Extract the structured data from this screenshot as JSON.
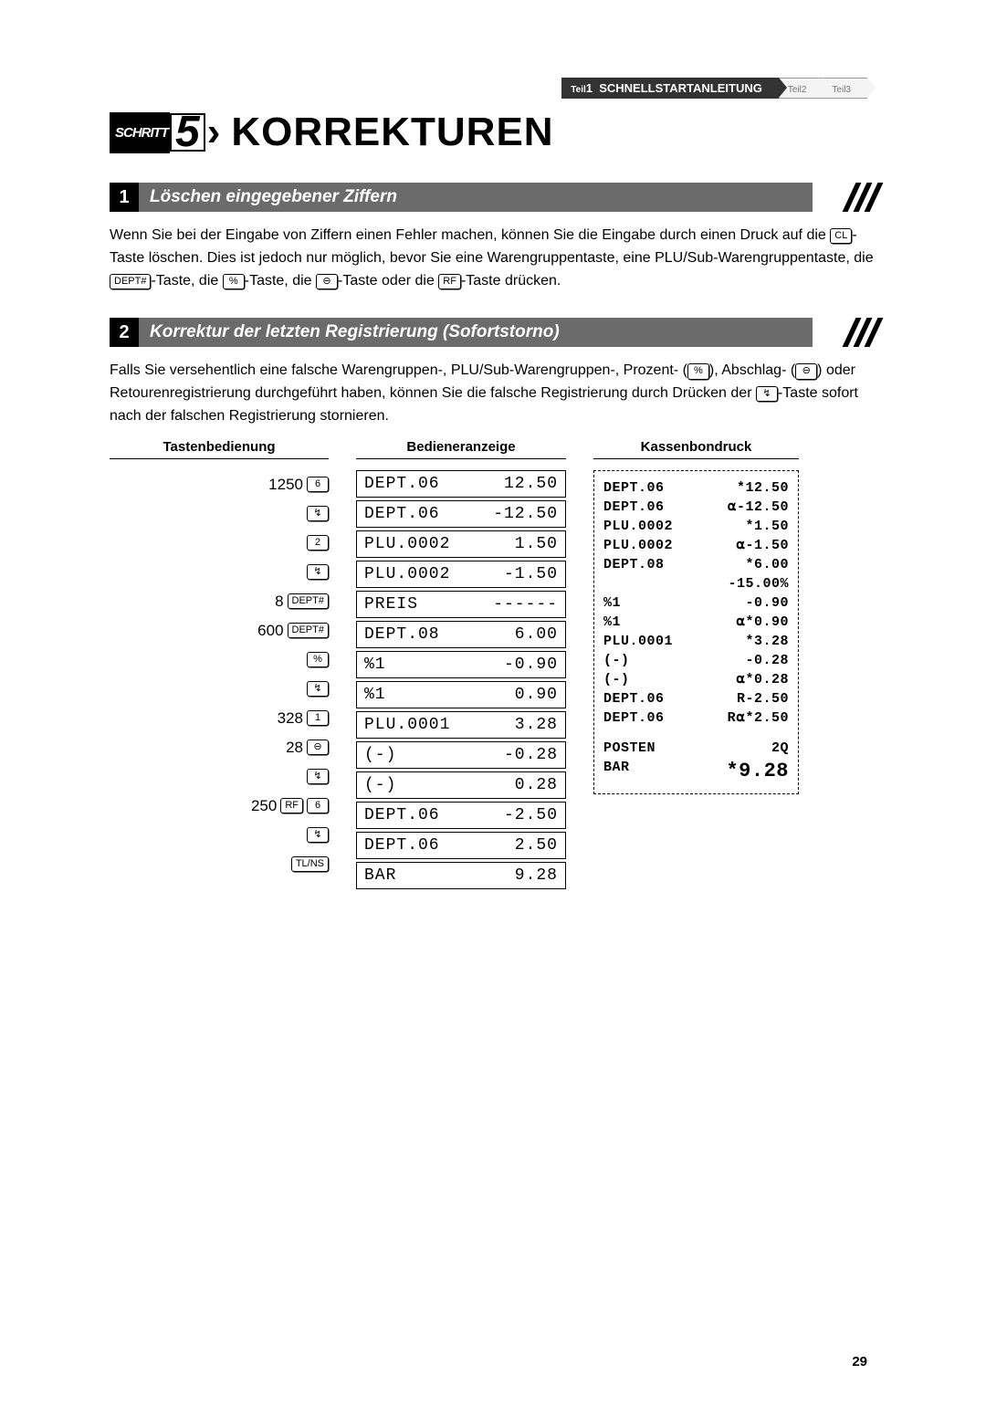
{
  "breadcrumb": {
    "part1_prefix": "Teil",
    "part1_num": "1",
    "part1_label": "SCHNELLSTARTANLEITUNG",
    "part2": "Teil2",
    "part3": "Teil3"
  },
  "step": {
    "badge": "SCHRITT",
    "number": "5",
    "title": "KORREKTUREN"
  },
  "section1": {
    "num": "1",
    "title": "Löschen eingegebener Ziffern",
    "paragraph_a": "Wenn Sie bei der Eingabe von Ziffern einen Fehler machen, können Sie die Eingabe durch einen Druck auf die ",
    "key_cl": "CL",
    "paragraph_b": "-Taste löschen. Dies ist jedoch nur möglich, bevor Sie eine Warengruppentaste, eine PLU/Sub-Warengruppentaste, die ",
    "key_dept": "DEPT#",
    "paragraph_c": "-Taste, die ",
    "key_pct": "%",
    "paragraph_d": "-Taste, die ",
    "key_minus": "⊖",
    "paragraph_e": "-Taste oder die ",
    "key_rf": "RF",
    "paragraph_f": "-Taste drücken."
  },
  "section2": {
    "num": "2",
    "title": "Korrektur der letzten Registrierung (Sofortstorno)",
    "paragraph_a": "Falls Sie versehentlich eine falsche Warengruppen-, PLU/Sub-Warengruppen-, Prozent- (",
    "key_pct": "%",
    "paragraph_b": "), Abschlag- (",
    "key_minus": "⊖",
    "paragraph_c": ") oder Retourenregistrierung durchgeführt haben, können Sie die falsche Registrierung durch Drücken der ",
    "key_void": "↯",
    "paragraph_d": "-Taste sofort nach der falschen Registrierung stornieren."
  },
  "columns": {
    "head_keys": "Tastenbedienung",
    "head_disp": "Bedieneranzeige",
    "head_receipt": "Kassenbondruck"
  },
  "key_rows": [
    {
      "pre": "1250",
      "keys": [
        "6"
      ]
    },
    {
      "pre": "",
      "keys": [
        "↯"
      ]
    },
    {
      "pre": "",
      "keys": [
        "2"
      ]
    },
    {
      "pre": "",
      "keys": [
        "↯"
      ]
    },
    {
      "pre": "8",
      "keys": [
        "DEPT#"
      ]
    },
    {
      "pre": "600",
      "keys": [
        "DEPT#"
      ]
    },
    {
      "pre": "",
      "keys": [
        "%"
      ]
    },
    {
      "pre": "",
      "keys": [
        "↯"
      ]
    },
    {
      "pre": "328",
      "keys": [
        "1"
      ]
    },
    {
      "pre": "28",
      "keys": [
        "⊖"
      ]
    },
    {
      "pre": "",
      "keys": [
        "↯"
      ]
    },
    {
      "pre": "250",
      "keys": [
        "RF",
        "6"
      ]
    },
    {
      "pre": "",
      "keys": [
        "↯"
      ]
    },
    {
      "pre": "",
      "keys": [
        "TL/NS"
      ]
    }
  ],
  "disp_rows": [
    {
      "l": "DEPT.06",
      "r": "12.50"
    },
    {
      "l": "DEPT.06",
      "r": "-12.50"
    },
    {
      "l": "PLU.0002",
      "r": "1.50"
    },
    {
      "l": "PLU.0002",
      "r": "-1.50"
    },
    {
      "l": "PREIS",
      "r": "------"
    },
    {
      "l": "DEPT.08",
      "r": "6.00"
    },
    {
      "l": "%1",
      "r": "-0.90"
    },
    {
      "l": "%1",
      "r": "0.90"
    },
    {
      "l": "PLU.0001",
      "r": "3.28"
    },
    {
      "l": "(-)",
      "r": "-0.28"
    },
    {
      "l": "(-)",
      "r": "0.28"
    },
    {
      "l": "DEPT.06",
      "r": "-2.50"
    },
    {
      "l": "DEPT.06",
      "r": "2.50"
    },
    {
      "l": "BAR",
      "r": "9.28"
    }
  ],
  "receipt_rows": [
    {
      "l": "DEPT.06",
      "r": "*12.50"
    },
    {
      "l": "DEPT.06",
      "r": "⍺-12.50"
    },
    {
      "l": "PLU.0002",
      "r": "*1.50"
    },
    {
      "l": "PLU.0002",
      "r": "⍺-1.50"
    },
    {
      "l": "DEPT.08",
      "r": "*6.00"
    },
    {
      "l": "",
      "r": "-15.00%"
    },
    {
      "l": "%1",
      "r": "-0.90"
    },
    {
      "l": "%1",
      "r": "⍺*0.90"
    },
    {
      "l": "PLU.0001",
      "r": "*3.28"
    },
    {
      "l": "(-)",
      "r": "-0.28"
    },
    {
      "l": "(-)",
      "r": "⍺*0.28"
    },
    {
      "l": "DEPT.06",
      "r": "R-2.50"
    },
    {
      "l": "DEPT.06",
      "r": "R⍺*2.50"
    }
  ],
  "receipt_footer": [
    {
      "l": "POSTEN",
      "r": "2Q"
    },
    {
      "l": "BAR",
      "r": "*9.28"
    }
  ],
  "page_number": "29"
}
